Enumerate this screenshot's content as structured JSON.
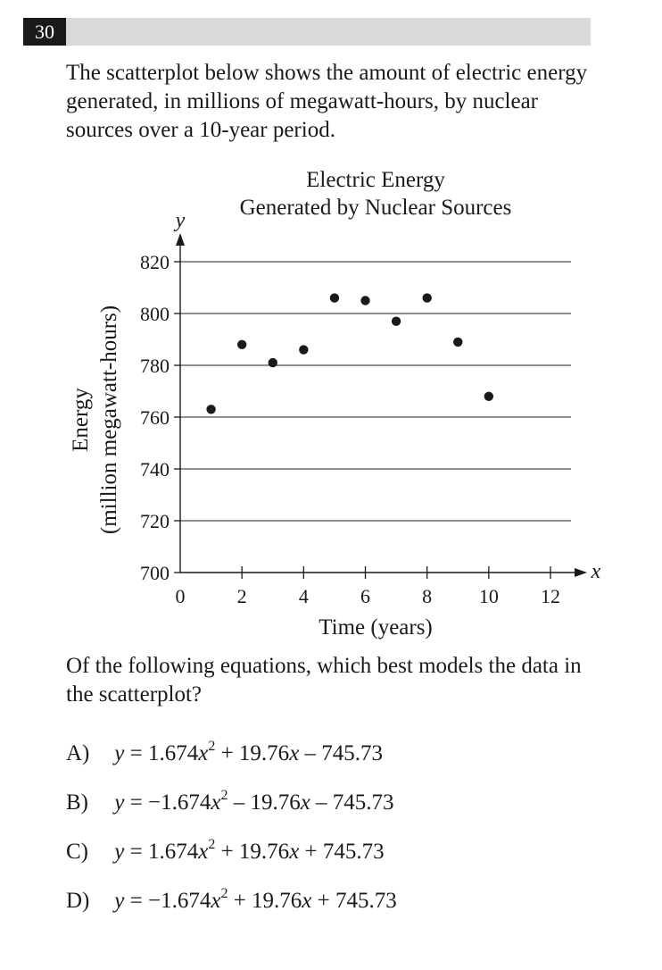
{
  "question": {
    "number": "30",
    "stem": "The scatterplot below shows the amount of electric energy generated, in millions of megawatt-hours, by nuclear sources over a 10-year period.",
    "prompt": "Of the following equations, which best models the data in the scatterplot?"
  },
  "choices": [
    {
      "letter": "A)",
      "a": "1.674",
      "b": " + 19.76",
      "c": " – 745.73"
    },
    {
      "letter": "B)",
      "a": "−1.674",
      "b": " – 19.76",
      "c": " – 745.73"
    },
    {
      "letter": "C)",
      "a": "1.674",
      "b": " + 19.76",
      "c": " + 745.73"
    },
    {
      "letter": "D)",
      "a": "−1.674",
      "b": " + 19.76",
      "c": " + 745.73"
    }
  ],
  "chart_data": {
    "type": "scatter",
    "title_line1": "Electric Energy",
    "title_line2": "Generated by Nuclear Sources",
    "xlabel": "Time (years)",
    "ylabel_line1": "Energy",
    "ylabel_line2": "(million megawatt-hours)",
    "x_axis_letter": "x",
    "y_axis_letter": "y",
    "xlim": [
      0,
      12
    ],
    "ylim": [
      700,
      820
    ],
    "xticks": [
      0,
      2,
      4,
      6,
      8,
      10,
      12
    ],
    "yticks": [
      700,
      720,
      740,
      760,
      780,
      800,
      820
    ],
    "grid": "horizontal",
    "points": [
      {
        "x": 1,
        "y": 763
      },
      {
        "x": 2,
        "y": 788
      },
      {
        "x": 3,
        "y": 781
      },
      {
        "x": 4,
        "y": 786
      },
      {
        "x": 5,
        "y": 806
      },
      {
        "x": 6,
        "y": 805
      },
      {
        "x": 7,
        "y": 797
      },
      {
        "x": 8,
        "y": 806
      },
      {
        "x": 9,
        "y": 789
      },
      {
        "x": 10,
        "y": 768
      }
    ]
  }
}
